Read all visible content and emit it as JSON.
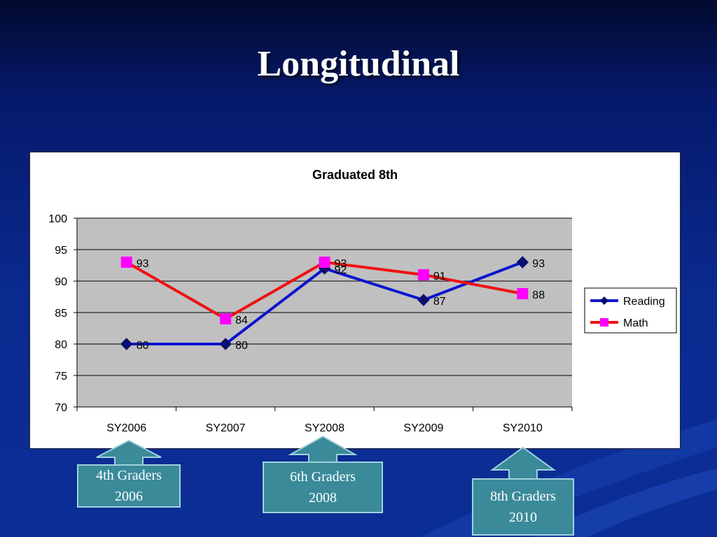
{
  "slide": {
    "title": "Longitudinal"
  },
  "chart_data": {
    "type": "line",
    "title": "Graduated 8th",
    "xlabel": "",
    "ylabel": "",
    "categories": [
      "SY2006",
      "SY2007",
      "SY2008",
      "SY2009",
      "SY2010"
    ],
    "ylim": [
      70,
      100
    ],
    "yticks": [
      70,
      75,
      80,
      85,
      90,
      95,
      100
    ],
    "grid": true,
    "legend": "right",
    "series": [
      {
        "name": "Reading",
        "values": [
          80,
          80,
          92,
          87,
          93
        ],
        "labels": [
          "80",
          "80",
          "92",
          "87",
          "93"
        ],
        "color": "#0a14d0",
        "marker": "diamond",
        "marker_color": "#0a0f6e"
      },
      {
        "name": "Math",
        "values": [
          93,
          84,
          93,
          91,
          88
        ],
        "labels": [
          "93",
          "84",
          "93",
          "91",
          "88"
        ],
        "color": "#f01010",
        "marker": "square",
        "marker_color": "#ff00ff"
      }
    ]
  },
  "callouts": [
    {
      "line1": "4th Graders",
      "line2": "2006"
    },
    {
      "line1": "6th Graders",
      "line2": "2008"
    },
    {
      "line1": "8th Graders",
      "line2": "2010"
    }
  ],
  "colors": {
    "plot_background": "#c0c0c0",
    "callout_fill": "#3a8a9a",
    "callout_border": "#9fd2dc"
  }
}
